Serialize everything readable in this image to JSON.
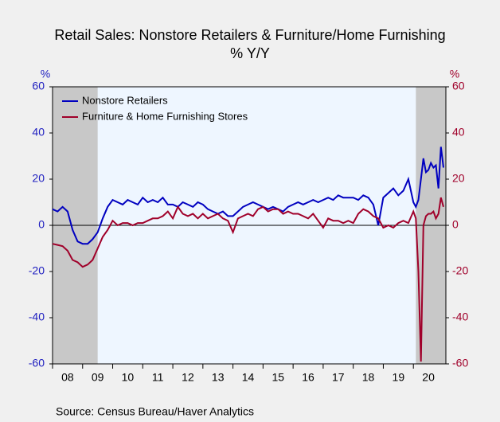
{
  "chart_data": {
    "type": "line",
    "title": "Retail Sales: Nonstore Retailers & Furniture/Home Furnishing",
    "subtitle": "% Y/Y",
    "ylabel": "%",
    "y2label": "%",
    "source": "Source:   Census Bureau/Haver Analytics",
    "x": [
      2008,
      2008.167,
      2008.333,
      2008.5,
      2008.667,
      2008.833,
      2009,
      2009.167,
      2009.333,
      2009.5,
      2009.667,
      2009.833,
      2010,
      2010.167,
      2010.333,
      2010.5,
      2010.667,
      2010.833,
      2011,
      2011.167,
      2011.333,
      2011.5,
      2011.667,
      2011.833,
      2012,
      2012.167,
      2012.333,
      2012.5,
      2012.667,
      2012.833,
      2013,
      2013.167,
      2013.333,
      2013.5,
      2013.667,
      2013.833,
      2014,
      2014.167,
      2014.333,
      2014.5,
      2014.667,
      2014.833,
      2015,
      2015.167,
      2015.333,
      2015.5,
      2015.667,
      2015.833,
      2016,
      2016.167,
      2016.333,
      2016.5,
      2016.667,
      2016.833,
      2017,
      2017.167,
      2017.333,
      2017.5,
      2017.667,
      2017.833,
      2018,
      2018.167,
      2018.333,
      2018.5,
      2018.667,
      2018.833,
      2019,
      2019.167,
      2019.333,
      2019.5,
      2019.667,
      2019.833,
      2020,
      2020.083,
      2020.167,
      2020.25,
      2020.333,
      2020.417,
      2020.5,
      2020.583,
      2020.667,
      2020.75,
      2020.833,
      2020.917,
      2021
    ],
    "series": [
      {
        "name": "Nonstore Retailers",
        "color": "#0000c0",
        "values": [
          7,
          6,
          8,
          6,
          -2,
          -7,
          -8,
          -8,
          -6,
          -3,
          3,
          8,
          11,
          10,
          9,
          11,
          10,
          9,
          12,
          10,
          11,
          10,
          12,
          9,
          9,
          8,
          10,
          9,
          8,
          10,
          9,
          7,
          6,
          5,
          6,
          4,
          4,
          6,
          8,
          9,
          10,
          9,
          8,
          7,
          8,
          7,
          6,
          8,
          9,
          10,
          9,
          10,
          11,
          10,
          11,
          12,
          11,
          13,
          12,
          12,
          12,
          11,
          13,
          12,
          9,
          0,
          12,
          14,
          16,
          13,
          15,
          20,
          10,
          8,
          11,
          20,
          29,
          23,
          24,
          27,
          25,
          26,
          16,
          34,
          25
        ]
      },
      {
        "name": "Furniture & Home Furnishing Stores",
        "color": "#a0002a",
        "axis": "y2",
        "values": [
          -8,
          -8.5,
          -9,
          -11,
          -15,
          -16,
          -18,
          -17,
          -15,
          -10,
          -5,
          -2,
          2,
          0,
          1,
          1,
          0,
          1,
          1,
          2,
          3,
          3,
          4,
          6,
          3,
          8,
          5,
          4,
          5,
          3,
          5,
          3,
          4,
          5,
          3,
          2,
          -3,
          3,
          4,
          5,
          4,
          7,
          8,
          6,
          7,
          7,
          5,
          6,
          5,
          5,
          4,
          3,
          5,
          2,
          -1,
          3,
          2,
          2,
          1,
          2,
          1,
          5,
          7,
          6,
          4,
          3,
          -1,
          0,
          -1,
          1,
          2,
          1,
          6,
          3,
          -20,
          -59,
          0,
          4,
          5,
          5,
          6,
          3,
          5,
          12,
          8
        ]
      }
    ],
    "recessions": [
      [
        2008,
        2009.5
      ],
      [
        2020.083,
        2021.08
      ]
    ],
    "xlim": [
      2008,
      2021.08
    ],
    "xticks": [
      {
        "value": 2008.5,
        "label": "08"
      },
      {
        "value": 2009.5,
        "label": "09"
      },
      {
        "value": 2010.5,
        "label": "10"
      },
      {
        "value": 2011.5,
        "label": "11"
      },
      {
        "value": 2012.5,
        "label": "12"
      },
      {
        "value": 2013.5,
        "label": "13"
      },
      {
        "value": 2014.5,
        "label": "14"
      },
      {
        "value": 2015.5,
        "label": "15"
      },
      {
        "value": 2016.5,
        "label": "16"
      },
      {
        "value": 2017.5,
        "label": "17"
      },
      {
        "value": 2018.5,
        "label": "18"
      },
      {
        "value": 2019.5,
        "label": "19"
      },
      {
        "value": 2020.5,
        "label": "20"
      }
    ],
    "ylim": [
      -60,
      60
    ],
    "yticks": [
      -60,
      -40,
      -20,
      0,
      20,
      40,
      60
    ],
    "y2lim": [
      -60,
      60
    ],
    "y2ticks": [
      -60,
      -40,
      -20,
      0,
      20,
      40,
      60
    ],
    "legend": "top-left"
  }
}
